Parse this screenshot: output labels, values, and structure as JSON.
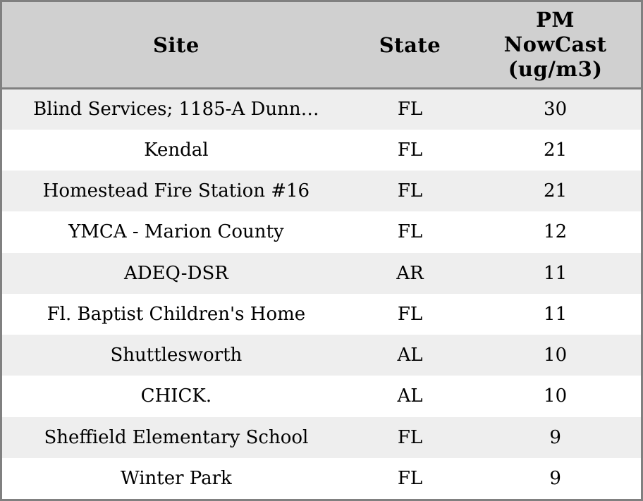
{
  "table": {
    "header": {
      "site": "Site",
      "state": "State",
      "pm": {
        "label": "PM NowCast (ug/m3)",
        "lines": [
          "PM",
          "NowCast",
          "(ug/m3)"
        ]
      }
    },
    "rows": [
      {
        "site": "Blind Services; 1185-A Dunn…",
        "state": "FL",
        "pm": "30"
      },
      {
        "site": "Kendal",
        "state": "FL",
        "pm": "21"
      },
      {
        "site": "Homestead Fire Station #16",
        "state": "FL",
        "pm": "21"
      },
      {
        "site": "YMCA - Marion County",
        "state": "FL",
        "pm": "12"
      },
      {
        "site": "ADEQ-DSR",
        "state": "AR",
        "pm": "11"
      },
      {
        "site": "Fl. Baptist Children's Home",
        "state": "FL",
        "pm": "11"
      },
      {
        "site": "Shuttlesworth",
        "state": "AL",
        "pm": "10"
      },
      {
        "site": "CHICK.",
        "state": "AL",
        "pm": "10"
      },
      {
        "site": "Sheffield Elementary School",
        "state": "FL",
        "pm": "9"
      },
      {
        "site": "Winter Park",
        "state": "FL",
        "pm": "9"
      }
    ]
  },
  "colors": {
    "header_bg": "#d0d0d0",
    "row_stripe_bg": "#eeeeee",
    "row_bg": "#ffffff",
    "border": "#808080",
    "text": "#000000"
  },
  "chart_data": {
    "type": "table",
    "title": "",
    "columns": [
      "Site",
      "State",
      "PM NowCast (ug/m3)"
    ],
    "rows": [
      [
        "Blind Services; 1185-A Dunn…",
        "FL",
        30
      ],
      [
        "Kendal",
        "FL",
        21
      ],
      [
        "Homestead Fire Station #16",
        "FL",
        21
      ],
      [
        "YMCA - Marion County",
        "FL",
        12
      ],
      [
        "ADEQ-DSR",
        "AR",
        11
      ],
      [
        "Fl. Baptist Children's Home",
        "FL",
        11
      ],
      [
        "Shuttlesworth",
        "AL",
        10
      ],
      [
        "CHICK.",
        "AL",
        10
      ],
      [
        "Sheffield Elementary School",
        "FL",
        9
      ],
      [
        "Winter Park",
        "FL",
        9
      ]
    ]
  }
}
